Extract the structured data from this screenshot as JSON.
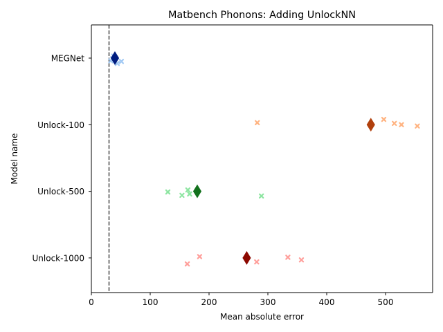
{
  "chart_data": {
    "type": "scatter",
    "title": "Matbench Phonons: Adding UnlockNN",
    "xlabel": "Mean absolute error",
    "ylabel": "Model name",
    "xlim": [
      0,
      580
    ],
    "xticks": [
      0,
      100,
      200,
      300,
      400,
      500
    ],
    "categories": [
      "MEGNet",
      "Unlock-100",
      "Unlock-500",
      "Unlock-1000"
    ],
    "reference_line": {
      "x": 30,
      "style": "dashed"
    },
    "series": [
      {
        "category": "MEGNet",
        "fold_color": "#a1c9f4",
        "mean_color": "#001c7f",
        "folds": [
          {
            "x": 33,
            "y": 0.04
          },
          {
            "x": 38,
            "y": -0.03
          },
          {
            "x": 44,
            "y": 0.08
          },
          {
            "x": 51,
            "y": 0.05
          },
          {
            "x": 36,
            "y": 0.01
          }
        ],
        "mean": 40
      },
      {
        "category": "Unlock-100",
        "fold_color": "#ffb482",
        "mean_color": "#b1400d",
        "folds": [
          {
            "x": 282,
            "y": -0.03
          },
          {
            "x": 497,
            "y": -0.08
          },
          {
            "x": 515,
            "y": -0.02
          },
          {
            "x": 527,
            "y": 0.0
          },
          {
            "x": 554,
            "y": 0.02
          }
        ],
        "mean": 475
      },
      {
        "category": "Unlock-500",
        "fold_color": "#8de5a1",
        "mean_color": "#12711c",
        "folds": [
          {
            "x": 130,
            "y": 0.01
          },
          {
            "x": 154,
            "y": 0.06
          },
          {
            "x": 164,
            "y": -0.02
          },
          {
            "x": 167,
            "y": 0.04
          },
          {
            "x": 289,
            "y": 0.07
          }
        ],
        "mean": 180
      },
      {
        "category": "Unlock-1000",
        "fold_color": "#ff9f9b",
        "mean_color": "#8c0800",
        "folds": [
          {
            "x": 163,
            "y": 0.09
          },
          {
            "x": 184,
            "y": -0.02
          },
          {
            "x": 281,
            "y": 0.06
          },
          {
            "x": 334,
            "y": -0.01
          },
          {
            "x": 357,
            "y": 0.03
          }
        ],
        "mean": 264
      }
    ]
  }
}
